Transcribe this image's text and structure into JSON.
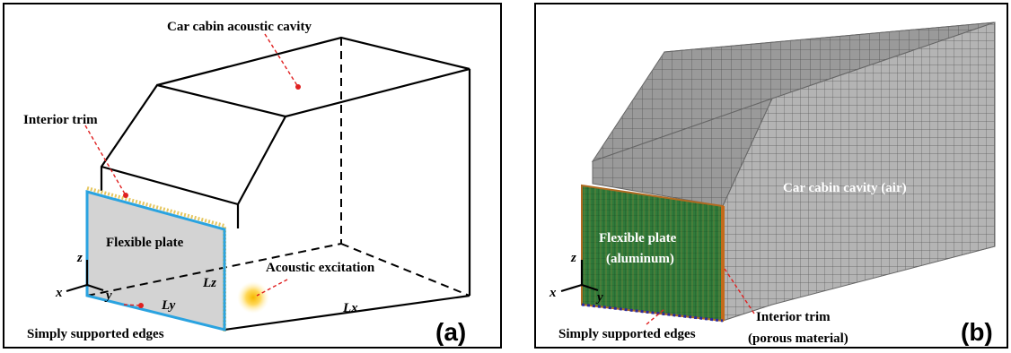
{
  "panels": [
    {
      "cavity_label": "Car cabin acoustic cavity",
      "trim_label": "Interior trim",
      "plate_label": "Flexible plate",
      "excitation_label": "Acoustic excitation",
      "lz": "Lz",
      "ly": "Ly",
      "lx": "Lx",
      "axis_x": "x",
      "axis_y": "y",
      "axis_z": "z",
      "edges_label": "Simply supported edges",
      "tag": "(a)"
    },
    {
      "cavity_label": "Car cabin cavity (air)",
      "plate_label": [
        "Flexible plate",
        "(aluminum)"
      ],
      "trim_label": [
        "Interior trim",
        "(porous material)"
      ],
      "axis_x": "x",
      "axis_y": "y",
      "axis_z": "z",
      "edges_label": "Simply supported edges",
      "tag": "(b)"
    }
  ]
}
